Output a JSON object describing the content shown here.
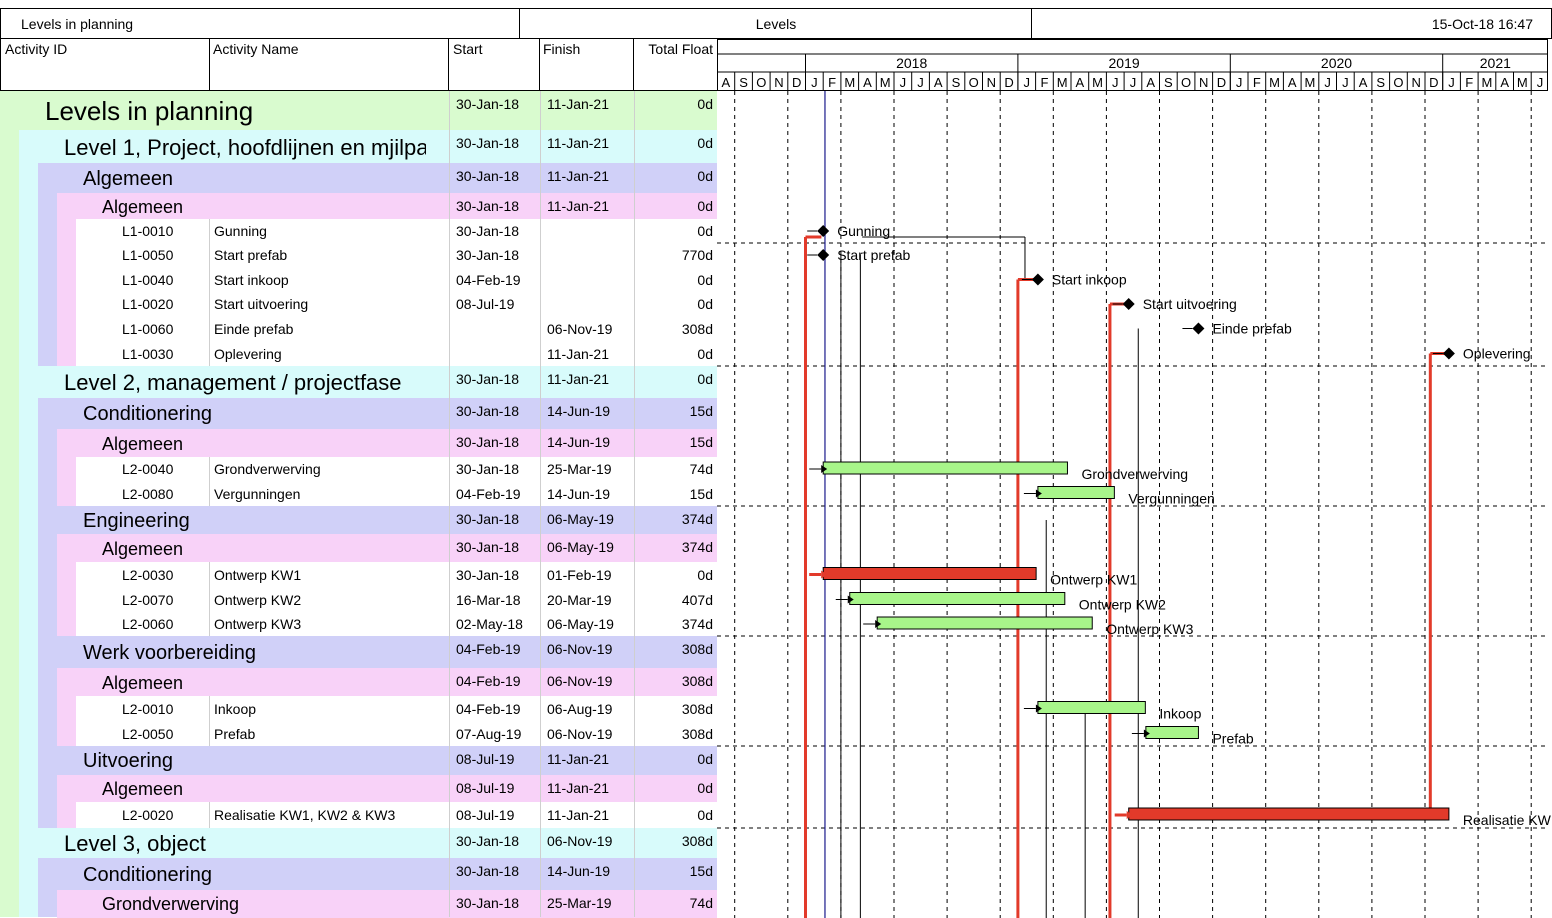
{
  "header": {
    "left": "Levels in planning",
    "center": "Levels",
    "right": "15-Oct-18 16:47"
  },
  "columns": {
    "id": "Activity ID",
    "name": "Activity Name",
    "start": "Start",
    "finish": "Finish",
    "float": "Total Float"
  },
  "colors": {
    "level0": "#d9fbcf",
    "level1": "#d8fbfb",
    "level2": "#d0d0f8",
    "level3": "#f8d2f8",
    "activity": "#ffffff",
    "bar_normal": "#a8f58a",
    "bar_critical": "#e23a2a",
    "link_critical": "#e23a2a"
  },
  "timescale": {
    "years": [
      "2018",
      "2019",
      "2020",
      "2021"
    ],
    "months": [
      "A",
      "S",
      "O",
      "N",
      "D",
      "J",
      "F",
      "M",
      "A",
      "M",
      "J",
      "J",
      "A",
      "S",
      "O",
      "N",
      "D",
      "J",
      "F",
      "M",
      "A",
      "M",
      "J",
      "J",
      "A",
      "S",
      "O",
      "N",
      "D",
      "J",
      "F",
      "M",
      "A",
      "M",
      "J",
      "J",
      "A",
      "S",
      "O",
      "N",
      "D",
      "J",
      "F",
      "M",
      "A",
      "M",
      "J"
    ]
  },
  "rows": [
    {
      "kind": "group",
      "level": 0,
      "name": "Levels in planning",
      "start": "30-Jan-18",
      "finish": "11-Jan-21",
      "float": "0d"
    },
    {
      "kind": "group",
      "level": 1,
      "name": "Level 1, Project, hoofdlijnen en mjilpa",
      "start": "30-Jan-18",
      "finish": "11-Jan-21",
      "float": "0d"
    },
    {
      "kind": "group",
      "level": 2,
      "name": "Algemeen",
      "start": "30-Jan-18",
      "finish": "11-Jan-21",
      "float": "0d"
    },
    {
      "kind": "group",
      "level": 3,
      "name": "Algemeen",
      "start": "30-Jan-18",
      "finish": "11-Jan-21",
      "float": "0d"
    },
    {
      "kind": "activity",
      "id": "L1-0010",
      "name": "Gunning",
      "start": "30-Jan-18",
      "finish": "",
      "float": "0d",
      "bar": {
        "type": "milestone",
        "at": 1.0,
        "critical": true
      },
      "label": "Gunning"
    },
    {
      "kind": "activity",
      "id": "L1-0050",
      "name": "Start prefab",
      "start": "30-Jan-18",
      "finish": "",
      "float": "770d",
      "bar": {
        "type": "milestone",
        "at": 1.0,
        "critical": false
      },
      "label": "Start prefab"
    },
    {
      "kind": "activity",
      "id": "L1-0040",
      "name": "Start inkoop",
      "start": "04-Feb-19",
      "finish": "",
      "float": "0d",
      "bar": {
        "type": "milestone",
        "at": 13.13,
        "critical": true
      },
      "label": "Start inkoop"
    },
    {
      "kind": "activity",
      "id": "L1-0020",
      "name": "Start uitvoering",
      "start": "08-Jul-19",
      "finish": "",
      "float": "0d",
      "bar": {
        "type": "milestone",
        "at": 18.26,
        "critical": true
      },
      "label": "Start uitvoering"
    },
    {
      "kind": "activity",
      "id": "L1-0060",
      "name": "Einde prefab",
      "start": "",
      "finish": "06-Nov-19",
      "float": "308d",
      "bar": {
        "type": "milestone",
        "at": 22.2,
        "critical": false
      },
      "label": "Einde prefab"
    },
    {
      "kind": "activity",
      "id": "L1-0030",
      "name": "Oplevering",
      "start": "",
      "finish": "11-Jan-21",
      "float": "0d",
      "bar": {
        "type": "milestone",
        "at": 36.35,
        "critical": true
      },
      "label": "Oplevering"
    },
    {
      "kind": "group",
      "level": 1,
      "name": "Level 2, management / projectfase",
      "start": "30-Jan-18",
      "finish": "11-Jan-21",
      "float": "0d"
    },
    {
      "kind": "group",
      "level": 2,
      "name": "Conditionering",
      "start": "30-Jan-18",
      "finish": "14-Jun-19",
      "float": "15d"
    },
    {
      "kind": "group",
      "level": 3,
      "name": "Algemeen",
      "start": "30-Jan-18",
      "finish": "14-Jun-19",
      "float": "15d"
    },
    {
      "kind": "activity",
      "id": "L2-0040",
      "name": "Grondverwerving",
      "start": "30-Jan-18",
      "finish": "25-Mar-19",
      "float": "74d",
      "bar": {
        "type": "bar",
        "from": 1.0,
        "to": 14.8,
        "critical": false
      },
      "label": "Grondverwerving"
    },
    {
      "kind": "activity",
      "id": "L2-0080",
      "name": "Vergunningen",
      "start": "04-Feb-19",
      "finish": "14-Jun-19",
      "float": "15d",
      "bar": {
        "type": "bar",
        "from": 13.13,
        "to": 17.45,
        "critical": false
      },
      "label": "Vergunningen"
    },
    {
      "kind": "group",
      "level": 2,
      "name": "Engineering",
      "start": "30-Jan-18",
      "finish": "06-May-19",
      "float": "374d"
    },
    {
      "kind": "group",
      "level": 3,
      "name": "Algemeen",
      "start": "30-Jan-18",
      "finish": "06-May-19",
      "float": "374d"
    },
    {
      "kind": "activity",
      "id": "L2-0030",
      "name": "Ontwerp KW1",
      "start": "30-Jan-18",
      "finish": "01-Feb-19",
      "float": "0d",
      "bar": {
        "type": "bar",
        "from": 1.0,
        "to": 13.03,
        "critical": true
      },
      "label": "Ontwerp KW1"
    },
    {
      "kind": "activity",
      "id": "L2-0070",
      "name": "Ontwerp KW2",
      "start": "16-Mar-18",
      "finish": "20-Mar-19",
      "float": "407d",
      "bar": {
        "type": "bar",
        "from": 2.5,
        "to": 14.65,
        "critical": false
      },
      "label": "Ontwerp KW2"
    },
    {
      "kind": "activity",
      "id": "L2-0060",
      "name": "Ontwerp KW3",
      "start": "02-May-18",
      "finish": "06-May-19",
      "float": "374d",
      "bar": {
        "type": "bar",
        "from": 4.05,
        "to": 16.2,
        "critical": false
      },
      "label": "Ontwerp KW3"
    },
    {
      "kind": "group",
      "level": 2,
      "name": "Werk voorbereiding",
      "start": "04-Feb-19",
      "finish": "06-Nov-19",
      "float": "308d"
    },
    {
      "kind": "group",
      "level": 3,
      "name": "Algemeen",
      "start": "04-Feb-19",
      "finish": "06-Nov-19",
      "float": "308d"
    },
    {
      "kind": "activity",
      "id": "L2-0010",
      "name": "Inkoop",
      "start": "04-Feb-19",
      "finish": "06-Aug-19",
      "float": "308d",
      "bar": {
        "type": "bar",
        "from": 13.13,
        "to": 19.2,
        "critical": false
      },
      "label": "Inkoop"
    },
    {
      "kind": "activity",
      "id": "L2-0050",
      "name": "Prefab",
      "start": "07-Aug-19",
      "finish": "06-Nov-19",
      "float": "308d",
      "bar": {
        "type": "bar",
        "from": 19.23,
        "to": 22.2,
        "critical": false
      },
      "label": "Prefab"
    },
    {
      "kind": "group",
      "level": 2,
      "name": "Uitvoering",
      "start": "08-Jul-19",
      "finish": "11-Jan-21",
      "float": "0d"
    },
    {
      "kind": "group",
      "level": 3,
      "name": "Algemeen",
      "start": "08-Jul-19",
      "finish": "11-Jan-21",
      "float": "0d"
    },
    {
      "kind": "activity",
      "id": "L2-0020",
      "name": "Realisatie KW1, KW2 & KW3",
      "start": "08-Jul-19",
      "finish": "11-Jan-21",
      "float": "0d",
      "bar": {
        "type": "bar",
        "from": 18.26,
        "to": 36.35,
        "critical": true
      },
      "label": "Realisatie KW"
    },
    {
      "kind": "group",
      "level": 1,
      "name": "Level 3, object",
      "start": "30-Jan-18",
      "finish": "06-Nov-19",
      "float": "308d"
    },
    {
      "kind": "group",
      "level": 2,
      "name": "Conditionering",
      "start": "30-Jan-18",
      "finish": "14-Jun-19",
      "float": "15d"
    },
    {
      "kind": "group",
      "level": 3,
      "name": "Grondverwerving",
      "start": "30-Jan-18",
      "finish": "25-Mar-19",
      "float": "74d"
    }
  ]
}
